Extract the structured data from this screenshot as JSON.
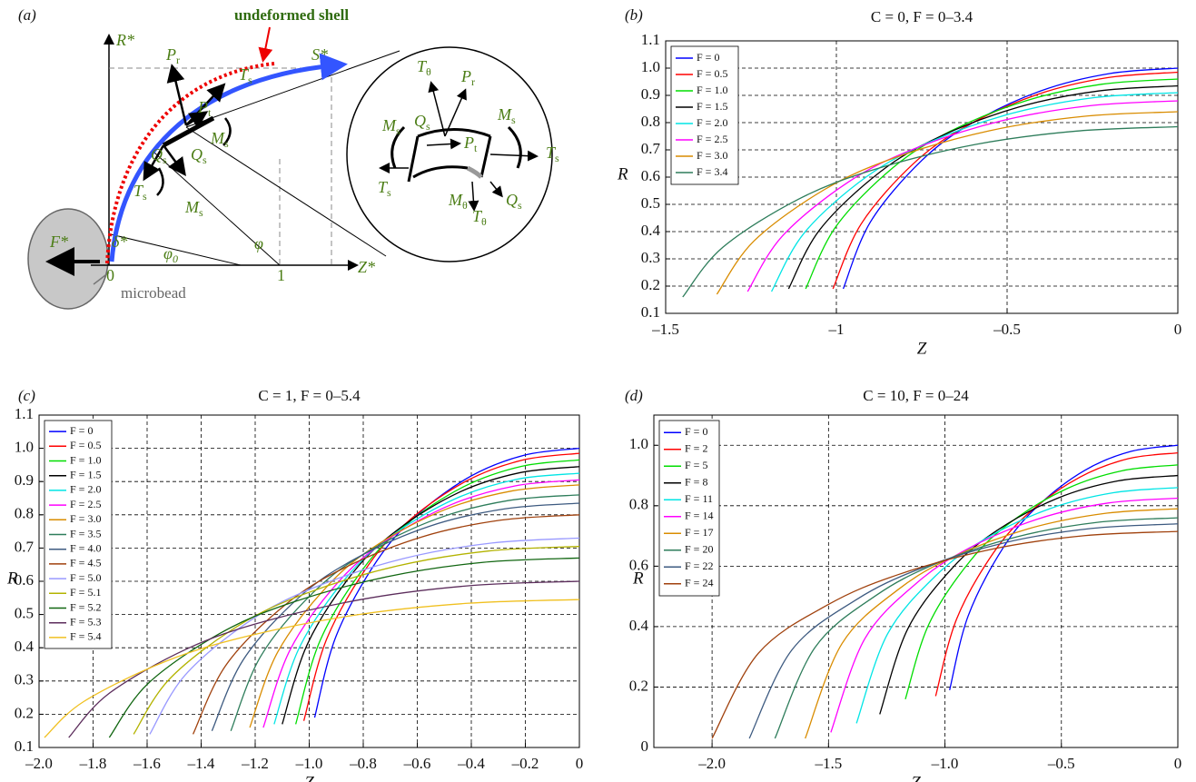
{
  "diagram": {
    "panel_label": "(a)",
    "callout": "undeformed shell",
    "axis_r": "R*",
    "arc": "S*",
    "axis_z": "Z*",
    "force": "F*",
    "offset": "δ*",
    "angle0": {
      "text": "φ",
      "sub": "0"
    },
    "angle": "φ",
    "origin": "0",
    "unit": "1",
    "bead": "microbead",
    "shell_labels": [
      {
        "text": "P",
        "sub": "r"
      },
      {
        "text": "T",
        "sub": "s"
      },
      {
        "text": "P",
        "sub": "t"
      },
      {
        "text": "Q",
        "sub": "s"
      },
      {
        "text": "Q",
        "sub": "s"
      },
      {
        "text": "M",
        "sub": "s"
      },
      {
        "text": "T",
        "sub": "s"
      },
      {
        "text": "M",
        "sub": "s"
      }
    ],
    "zoom_labels": [
      {
        "text": "T",
        "sub": "θ"
      },
      {
        "text": "P",
        "sub": "r"
      },
      {
        "text": "M",
        "sub": "s"
      },
      {
        "text": "M",
        "sub": "s"
      },
      {
        "text": "Q",
        "sub": "s"
      },
      {
        "text": "P",
        "sub": "t"
      },
      {
        "text": "T",
        "sub": "s"
      },
      {
        "text": "T",
        "sub": "s"
      },
      {
        "text": "M",
        "sub": "θ"
      },
      {
        "text": "T",
        "sub": "θ"
      },
      {
        "text": "Q",
        "sub": "s"
      }
    ]
  },
  "chart_data": [
    {
      "type": "line",
      "panel_label": "(b)",
      "title": "C = 0, F = 0–3.4",
      "xlabel": "Z",
      "ylabel": "R",
      "grid": true,
      "legend": "upper left",
      "xlim": [
        -1.5,
        0
      ],
      "ylim": [
        0.1,
        1.1
      ],
      "xticks": [
        {
          "value": -1.5,
          "label": "–1.5"
        },
        {
          "value": -1,
          "label": "–1"
        },
        {
          "value": -0.5,
          "label": "–0.5"
        },
        0
      ],
      "yticks": [
        0.1,
        0.2,
        0.3,
        0.4,
        0.5,
        0.6,
        0.7,
        0.8,
        0.9,
        {
          "value": 1,
          "label": "1.0"
        },
        1.1
      ],
      "series": [
        {
          "name": "F = 0",
          "color": "#0000ff",
          "x": [
            -0.98,
            -0.9,
            -0.75,
            -0.6,
            -0.4,
            -0.2,
            0
          ],
          "values": [
            0.19,
            0.436,
            0.661,
            0.8,
            0.917,
            0.98,
            1.0
          ]
        },
        {
          "name": "F = 0.5",
          "color": "#ff0000",
          "x": [
            -1.01,
            -0.927,
            -0.773,
            -0.618,
            -0.412,
            -0.206,
            0
          ],
          "values": [
            0.19,
            0.429,
            0.651,
            0.788,
            0.903,
            0.965,
            0.985
          ]
        },
        {
          "name": "F = 1.0",
          "color": "#00dd00",
          "x": [
            -1.09,
            -1.001,
            -0.834,
            -0.667,
            -0.445,
            -0.222,
            0
          ],
          "values": [
            0.19,
            0.419,
            0.635,
            0.768,
            0.88,
            0.941,
            0.96
          ]
        },
        {
          "name": "F = 1.5",
          "color": "#000000",
          "x": [
            -1.14,
            -1.048,
            -0.873,
            -0.698,
            -0.466,
            -0.233,
            0
          ],
          "values": [
            0.19,
            0.408,
            0.618,
            0.748,
            0.857,
            0.916,
            0.935
          ]
        },
        {
          "name": "F = 2.0",
          "color": "#00e5e5",
          "x": [
            -1.19,
            -1.093,
            -0.911,
            -0.728,
            -0.486,
            -0.243,
            0
          ],
          "values": [
            0.18,
            0.397,
            0.602,
            0.728,
            0.834,
            0.892,
            0.91
          ]
        },
        {
          "name": "F = 2.5",
          "color": "#ff00ff",
          "x": [
            -1.26,
            -1.158,
            -0.965,
            -0.772,
            -0.515,
            -0.257,
            0
          ],
          "values": [
            0.18,
            0.384,
            0.582,
            0.704,
            0.807,
            0.862,
            0.88
          ]
        },
        {
          "name": "F = 3.0",
          "color": "#d98c00",
          "x": [
            -1.35,
            -1.241,
            -1.034,
            -0.827,
            -0.552,
            -0.276,
            0
          ],
          "values": [
            0.17,
            0.366,
            0.555,
            0.672,
            0.77,
            0.823,
            0.84
          ]
        },
        {
          "name": "F = 3.4",
          "color": "#2e7d5b",
          "x": [
            -1.45,
            -1.333,
            -1.111,
            -0.889,
            -0.592,
            -0.296,
            0
          ],
          "values": [
            0.16,
            0.342,
            0.519,
            0.628,
            0.72,
            0.769,
            0.785
          ]
        }
      ]
    },
    {
      "type": "line",
      "panel_label": "(c)",
      "title": "C = 1, F = 0–5.4",
      "xlabel": "Z",
      "ylabel": "R",
      "grid": true,
      "legend": "upper left",
      "xlim": [
        -2,
        0
      ],
      "ylim": [
        0.1,
        1.1
      ],
      "xticks": [
        {
          "value": -2,
          "label": "–2.0"
        },
        {
          "value": -1.8,
          "label": "–1.8"
        },
        {
          "value": -1.6,
          "label": "–1.6"
        },
        {
          "value": -1.4,
          "label": "–1.4"
        },
        {
          "value": -1.2,
          "label": "–1.2"
        },
        {
          "value": -1,
          "label": "–1.0"
        },
        {
          "value": -0.8,
          "label": "–0.8"
        },
        {
          "value": -0.6,
          "label": "–0.6"
        },
        {
          "value": -0.4,
          "label": "–0.4"
        },
        {
          "value": -0.2,
          "label": "–0.2"
        },
        0
      ],
      "yticks": [
        0.1,
        0.2,
        0.3,
        0.4,
        0.5,
        0.6,
        0.7,
        0.8,
        0.9,
        {
          "value": 1,
          "label": "1.0"
        },
        1.1
      ],
      "series": [
        {
          "name": "F = 0",
          "color": "#0000ff",
          "x": [
            -0.98,
            -0.9,
            -0.75,
            -0.6,
            -0.4,
            -0.2,
            0
          ],
          "values": [
            0.19,
            0.436,
            0.661,
            0.8,
            0.917,
            0.98,
            1.0
          ]
        },
        {
          "name": "F = 0.5",
          "color": "#ff0000",
          "x": [
            -1.02,
            -0.934,
            -0.779,
            -0.623,
            -0.415,
            -0.208,
            0
          ],
          "values": [
            0.18,
            0.429,
            0.651,
            0.788,
            0.903,
            0.965,
            0.985
          ]
        },
        {
          "name": "F = 1.0",
          "color": "#00dd00",
          "x": [
            -1.05,
            -0.96,
            -0.8,
            -0.64,
            -0.427,
            -0.213,
            0
          ],
          "values": [
            0.17,
            0.421,
            0.638,
            0.772,
            0.885,
            0.946,
            0.965
          ]
        },
        {
          "name": "F = 1.5",
          "color": "#000000",
          "x": [
            -1.1,
            -1.006,
            -0.839,
            -0.671,
            -0.447,
            -0.224,
            0
          ],
          "values": [
            0.17,
            0.412,
            0.625,
            0.756,
            0.867,
            0.926,
            0.945
          ]
        },
        {
          "name": "F = 2.0",
          "color": "#00e5e5",
          "x": [
            -1.13,
            -1.035,
            -0.863,
            -0.69,
            -0.46,
            -0.23,
            0
          ],
          "values": [
            0.17,
            0.403,
            0.611,
            0.74,
            0.848,
            0.907,
            0.925
          ]
        },
        {
          "name": "F = 2.5",
          "color": "#ff00ff",
          "x": [
            -1.17,
            -1.07,
            -0.892,
            -0.713,
            -0.476,
            -0.238,
            0
          ],
          "values": [
            0.16,
            0.395,
            0.598,
            0.724,
            0.83,
            0.887,
            0.905
          ]
        },
        {
          "name": "F = 3.0",
          "color": "#d98c00",
          "x": [
            -1.22,
            -1.116,
            -0.93,
            -0.744,
            -0.496,
            -0.248,
            0
          ],
          "values": [
            0.16,
            0.388,
            0.588,
            0.712,
            0.816,
            0.872,
            0.89
          ]
        },
        {
          "name": "F = 3.5",
          "color": "#2e7d5b",
          "x": [
            -1.29,
            -1.179,
            -0.983,
            -0.786,
            -0.524,
            -0.262,
            0
          ],
          "values": [
            0.15,
            0.375,
            0.568,
            0.688,
            0.789,
            0.843,
            0.86
          ]
        },
        {
          "name": "F = 4.0",
          "color": "#3d5a80",
          "x": [
            -1.36,
            -1.244,
            -1.037,
            -0.829,
            -0.553,
            -0.276,
            0
          ],
          "values": [
            0.15,
            0.364,
            0.552,
            0.668,
            0.766,
            0.818,
            0.835
          ]
        },
        {
          "name": "F = 4.5",
          "color": "#a0410d",
          "x": [
            -1.43,
            -1.307,
            -1.089,
            -0.871,
            -0.581,
            -0.29,
            0
          ],
          "values": [
            0.14,
            0.349,
            0.529,
            0.64,
            0.734,
            0.784,
            0.8
          ]
        },
        {
          "name": "F = 5.0",
          "color": "#9999ff",
          "x": [
            -1.59,
            -1.459,
            -1.216,
            -0.973,
            -0.648,
            -0.324,
            0
          ],
          "values": [
            0.14,
            0.318,
            0.483,
            0.584,
            0.669,
            0.715,
            0.73
          ]
        },
        {
          "name": "F = 5.1",
          "color": "#b3b300",
          "x": [
            -1.65,
            -1.516,
            -1.263,
            -1.01,
            -0.674,
            -0.337,
            0
          ],
          "values": [
            0.14,
            0.307,
            0.466,
            0.564,
            0.646,
            0.691,
            0.705
          ]
        },
        {
          "name": "F = 5.2",
          "color": "#116611",
          "x": [
            -1.74,
            -1.597,
            -1.331,
            -1.064,
            -0.71,
            -0.355,
            0
          ],
          "values": [
            0.13,
            0.292,
            0.443,
            0.536,
            0.614,
            0.657,
            0.67
          ]
        },
        {
          "name": "F = 5.3",
          "color": "#5c2d5c",
          "x": [
            -1.89,
            -1.742,
            -1.452,
            -1.162,
            -0.774,
            -0.387,
            0
          ],
          "values": [
            0.13,
            0.262,
            0.397,
            0.48,
            0.55,
            0.588,
            0.6
          ]
        },
        {
          "name": "F = 5.4",
          "color": "#f0c020",
          "x": [
            -1.98,
            -1.835,
            -1.529,
            -1.223,
            -0.816,
            -0.408,
            0
          ],
          "values": [
            0.13,
            0.238,
            0.36,
            0.436,
            0.5,
            0.534,
            0.545
          ]
        }
      ]
    },
    {
      "type": "line",
      "panel_label": "(d)",
      "title": "C = 10, F = 0–24",
      "xlabel": "Z",
      "ylabel": "R",
      "grid": true,
      "legend": "upper left",
      "xlim": [
        -2.25,
        0
      ],
      "ylim": [
        0,
        1.1
      ],
      "xticks": [
        {
          "value": -2,
          "label": "–2.0"
        },
        {
          "value": -1.5,
          "label": "–1.5"
        },
        {
          "value": -1,
          "label": "–1.0"
        },
        {
          "value": -0.5,
          "label": "–0.5"
        },
        0
      ],
      "yticks": [
        0,
        0.2,
        0.4,
        0.6,
        0.8,
        {
          "value": 1,
          "label": "1.0"
        }
      ],
      "series": [
        {
          "name": "F = 0",
          "color": "#0000ff",
          "x": [
            -0.98,
            -0.9,
            -0.75,
            -0.6,
            -0.4,
            -0.2,
            0
          ],
          "values": [
            0.19,
            0.436,
            0.661,
            0.8,
            0.917,
            0.98,
            1.0
          ]
        },
        {
          "name": "F = 2",
          "color": "#ff0000",
          "x": [
            -1.04,
            -0.95,
            -0.792,
            -0.634,
            -0.422,
            -0.211,
            0
          ],
          "values": [
            0.17,
            0.425,
            0.644,
            0.78,
            0.894,
            0.956,
            0.975
          ]
        },
        {
          "name": "F = 5",
          "color": "#00dd00",
          "x": [
            -1.17,
            -1.069,
            -0.891,
            -0.713,
            -0.475,
            -0.238,
            0
          ],
          "values": [
            0.16,
            0.408,
            0.618,
            0.748,
            0.857,
            0.916,
            0.935
          ]
        },
        {
          "name": "F = 8",
          "color": "#000000",
          "x": [
            -1.28,
            -1.16,
            -0.967,
            -0.773,
            -0.516,
            -0.258,
            0
          ],
          "values": [
            0.11,
            0.392,
            0.595,
            0.72,
            0.825,
            0.882,
            0.9
          ]
        },
        {
          "name": "F = 11",
          "color": "#00e5e5",
          "x": [
            -1.38,
            -1.247,
            -1.04,
            -0.832,
            -0.554,
            -0.277,
            0
          ],
          "values": [
            0.08,
            0.375,
            0.568,
            0.688,
            0.789,
            0.843,
            0.86
          ]
        },
        {
          "name": "F = 14",
          "color": "#ff00ff",
          "x": [
            -1.49,
            -1.344,
            -1.12,
            -0.896,
            -0.597,
            -0.299,
            0
          ],
          "values": [
            0.05,
            0.36,
            0.545,
            0.66,
            0.757,
            0.809,
            0.825
          ]
        },
        {
          "name": "F = 17",
          "color": "#d98c00",
          "x": [
            -1.6,
            -1.442,
            -1.202,
            -0.961,
            -0.641,
            -0.32,
            0
          ],
          "values": [
            0.03,
            0.344,
            0.522,
            0.632,
            0.724,
            0.774,
            0.79
          ]
        },
        {
          "name": "F = 20",
          "color": "#2e7d5b",
          "x": [
            -1.73,
            -1.558,
            -1.298,
            -1.039,
            -0.692,
            -0.346,
            0
          ],
          "values": [
            0.03,
            0.331,
            0.502,
            0.608,
            0.697,
            0.745,
            0.76
          ]
        },
        {
          "name": "F = 22",
          "color": "#3d5a80",
          "x": [
            -1.84,
            -1.657,
            -1.381,
            -1.105,
            -0.736,
            -0.368,
            0
          ],
          "values": [
            0.03,
            0.323,
            0.489,
            0.592,
            0.679,
            0.725,
            0.74
          ]
        },
        {
          "name": "F = 24",
          "color": "#a0410d",
          "x": [
            -2,
            -1.801,
            -1.501,
            -1.201,
            -0.8,
            -0.4,
            0
          ],
          "values": [
            0.03,
            0.312,
            0.473,
            0.572,
            0.656,
            0.701,
            0.715
          ]
        }
      ]
    }
  ]
}
